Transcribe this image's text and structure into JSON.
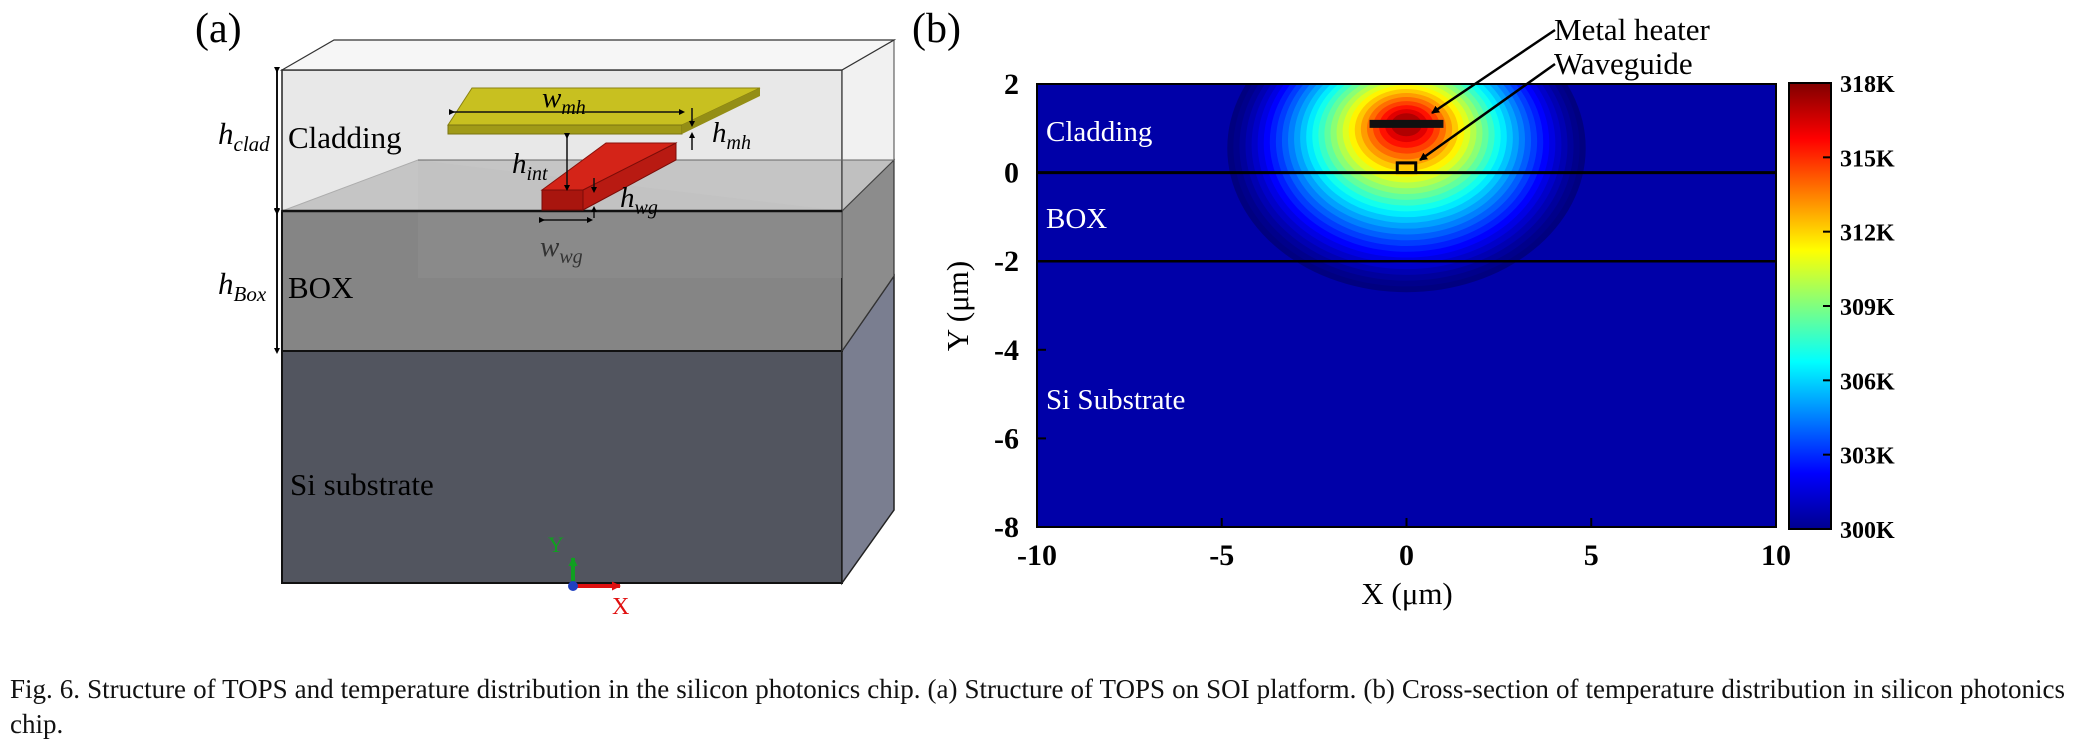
{
  "panel_a": {
    "label": "(a)",
    "layer_labels": {
      "cladding": "Cladding",
      "box": "BOX",
      "substrate": "Si substrate"
    },
    "dimensions": {
      "clad": {
        "main": "h",
        "sub": "clad"
      },
      "box": {
        "main": "h",
        "sub": "Box"
      },
      "int": {
        "main": "h",
        "sub": "int"
      },
      "mh": {
        "main": "h",
        "sub": "mh"
      },
      "wmh": {
        "main": "w",
        "sub": "mh"
      },
      "wg": {
        "main": "h",
        "sub": "wg"
      },
      "wwg": {
        "main": "w",
        "sub": "wg"
      }
    },
    "axis_triad": {
      "y": "Y",
      "x": "X"
    },
    "colors": {
      "heater": "#c8c020",
      "waveguide": "#c81e14",
      "axis_y": "#10a020",
      "axis_x": "#e01010",
      "triad_origin": "#2040c0"
    }
  },
  "panel_b": {
    "label": "(b)",
    "annotations": {
      "heater": "Metal heater",
      "waveguide": "Waveguide"
    },
    "region_labels": {
      "cladding": "Cladding",
      "box": "BOX",
      "substrate": "Si Substrate"
    }
  },
  "chart_data": {
    "type": "heatmap",
    "title": "",
    "xlabel": "X (μm)",
    "ylabel": "Y (μm)",
    "xlim": [
      -10,
      10
    ],
    "ylim": [
      -8,
      2
    ],
    "xticks": [
      -10,
      -5,
      0,
      5,
      10
    ],
    "yticks": [
      2,
      0,
      -2,
      -4,
      -6,
      -8
    ],
    "colorbar": {
      "range": [
        300,
        318
      ],
      "unit": "K",
      "ticks": [
        "318K",
        "315K",
        "312K",
        "309K",
        "306K",
        "303K",
        "300K"
      ],
      "tick_values": [
        318,
        315,
        312,
        309,
        306,
        303,
        300
      ],
      "colormap": "jet"
    },
    "interfaces_y": [
      0,
      -2
    ],
    "heater": {
      "x": [
        -1,
        1
      ],
      "y": 1.1
    },
    "waveguide": {
      "x": [
        -0.25,
        0.25
      ],
      "y": [
        0,
        0.22
      ]
    },
    "hotspot": {
      "x": 0,
      "y": 1.1,
      "temperature": 318
    },
    "background_temperature": 300
  },
  "caption": "Fig. 6.  Structure of TOPS and temperature distribution in the silicon photonics chip. (a) Structure of TOPS on SOI platform. (b) Cross-section of temperature distribution in silicon photonics chip."
}
